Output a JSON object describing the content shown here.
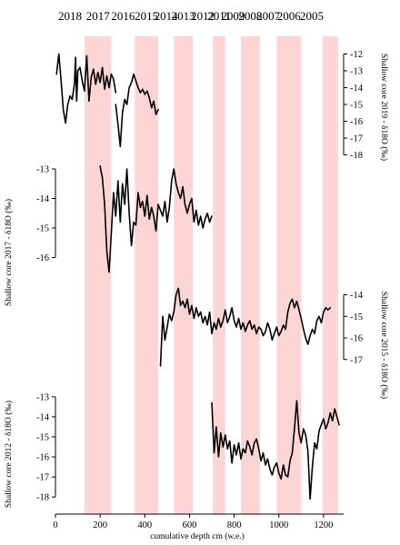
{
  "chart_data": {
    "type": "line",
    "xlabel": "cumulative depth cm (w.e.)",
    "xlim": [
      0,
      1290
    ],
    "x_ticks": [
      0,
      200,
      400,
      600,
      800,
      1000,
      1200
    ],
    "year_bands": [
      {
        "label": "2018",
        "start": 0,
        "end": 130,
        "shaded": false
      },
      {
        "label": "2017",
        "start": 130,
        "end": 250,
        "shaded": true
      },
      {
        "label": "2016",
        "start": 250,
        "end": 355,
        "shaded": false
      },
      {
        "label": "2015",
        "start": 355,
        "end": 460,
        "shaded": true
      },
      {
        "label": "2014",
        "start": 460,
        "end": 530,
        "shaded": false
      },
      {
        "label": "2013",
        "start": 530,
        "end": 615,
        "shaded": true
      },
      {
        "label": "2012",
        "start": 615,
        "end": 705,
        "shaded": false
      },
      {
        "label": "2011",
        "start": 705,
        "end": 760,
        "shaded": true
      },
      {
        "label": "2009",
        "start": 760,
        "end": 830,
        "shaded": false
      },
      {
        "label": "2008",
        "start": 830,
        "end": 915,
        "shaded": true
      },
      {
        "label": "2007",
        "start": 915,
        "end": 990,
        "shaded": false
      },
      {
        "label": "2006",
        "start": 990,
        "end": 1100,
        "shaded": true
      },
      {
        "label": "2005",
        "start": 1100,
        "end": 1195,
        "shaded": false
      },
      {
        "label": "",
        "start": 1195,
        "end": 1265,
        "shaded": true
      }
    ],
    "series": [
      {
        "name": "Shallow core 2019 - δ18O (‰)",
        "axis_side": "right",
        "ylim": [
          -18.4,
          -11.6
        ],
        "ticks": [
          -12,
          -13,
          -14,
          -15,
          -16,
          -17,
          -18
        ],
        "x": [
          5,
          15,
          25,
          35,
          45,
          55,
          65,
          75,
          85,
          90,
          95,
          100,
          110,
          120,
          130,
          140,
          150,
          160,
          170,
          180,
          190,
          200,
          210,
          220,
          230,
          240,
          250,
          260,
          270
        ],
        "y": [
          -13.2,
          -12.0,
          -13.5,
          -15.3,
          -16.1,
          -15.0,
          -14.5,
          -14.7,
          -13.8,
          -12.2,
          -14.8,
          -13.0,
          -12.8,
          -13.6,
          -14.2,
          -12.1,
          -14.8,
          -13.4,
          -12.9,
          -13.8,
          -13.1,
          -13.7,
          -12.8,
          -14.1,
          -13.3,
          -14.0,
          -13.2,
          -13.5,
          -14.3
        ]
      },
      {
        "name": "",
        "axis_side": "right",
        "ylim": [
          -18.4,
          -11.6
        ],
        "ticks": [],
        "x": [
          270,
          280,
          290,
          300,
          310,
          320,
          330,
          340,
          350,
          360,
          370,
          380,
          390,
          400,
          410,
          420,
          430,
          440,
          450,
          460
        ],
        "y": [
          -15.0,
          -16.2,
          -17.5,
          -15.5,
          -14.7,
          -15.0,
          -14.0,
          -13.7,
          -13.2,
          -13.6,
          -14.0,
          -14.3,
          -14.1,
          -14.4,
          -14.2,
          -14.6,
          -15.2,
          -14.8,
          -15.6,
          -15.3
        ]
      },
      {
        "name": "Shallow core 2017 - δ18O (‰)",
        "axis_side": "left",
        "ylim": [
          -16.6,
          -12.6
        ],
        "ticks": [
          -13,
          -14,
          -15,
          -16
        ],
        "x": [
          200,
          210,
          220,
          230,
          240,
          250,
          260,
          270,
          280,
          290,
          300,
          310,
          320,
          330,
          340,
          350,
          360,
          370,
          380,
          390,
          400,
          410,
          420,
          430,
          440,
          450,
          460,
          470,
          480,
          490,
          500,
          510,
          520,
          530,
          540,
          550,
          560,
          570,
          580,
          590,
          600,
          610,
          620,
          630,
          640,
          650,
          660,
          670,
          680,
          690,
          700
        ],
        "y": [
          -12.9,
          -13.3,
          -14.2,
          -15.8,
          -16.5,
          -15.2,
          -13.8,
          -14.6,
          -13.4,
          -14.8,
          -13.5,
          -14.2,
          -13.0,
          -14.5,
          -15.6,
          -14.8,
          -14.9,
          -13.8,
          -14.3,
          -14.1,
          -14.6,
          -13.9,
          -14.7,
          -14.3,
          -14.6,
          -15.1,
          -14.2,
          -14.4,
          -14.6,
          -14.1,
          -14.8,
          -14.3,
          -13.4,
          -13.0,
          -13.5,
          -13.8,
          -14.0,
          -13.6,
          -14.2,
          -14.5,
          -14.2,
          -14.0,
          -14.8,
          -14.4,
          -14.9,
          -14.6,
          -15.0,
          -14.7,
          -14.5,
          -14.8,
          -14.6
        ]
      },
      {
        "name": "Shallow core 2015 - δ18O (‰)",
        "axis_side": "right",
        "ylim": [
          -17.6,
          -13.6
        ],
        "ticks": [
          -14,
          -15,
          -16,
          -17
        ],
        "x": [
          470,
          480,
          490,
          500,
          510,
          520,
          530,
          540,
          550,
          560,
          570,
          580,
          590,
          600,
          610,
          620,
          630,
          640,
          650,
          660,
          670,
          680,
          690,
          700,
          710,
          720,
          730,
          740,
          750,
          760,
          770,
          780,
          790,
          800,
          810,
          820,
          830,
          840,
          850,
          860,
          870,
          880,
          890,
          900,
          910,
          920,
          930,
          940,
          950,
          960,
          970,
          980,
          990,
          1000,
          1010,
          1020,
          1030,
          1040,
          1050,
          1060,
          1070,
          1080,
          1090,
          1100,
          1110,
          1120,
          1130,
          1140,
          1150,
          1160,
          1170,
          1180,
          1190,
          1200,
          1210,
          1220,
          1230
        ],
        "y": [
          -17.3,
          -15.0,
          -16.1,
          -15.5,
          -14.9,
          -15.2,
          -14.8,
          -14.0,
          -13.7,
          -14.5,
          -14.3,
          -14.6,
          -14.2,
          -14.9,
          -14.5,
          -15.1,
          -14.6,
          -15.0,
          -14.8,
          -15.3,
          -15.0,
          -15.4,
          -14.8,
          -15.8,
          -15.3,
          -15.6,
          -15.1,
          -15.5,
          -15.2,
          -14.7,
          -15.3,
          -15.0,
          -14.6,
          -15.2,
          -15.5,
          -15.1,
          -15.6,
          -15.3,
          -15.7,
          -15.4,
          -15.2,
          -15.6,
          -15.4,
          -15.8,
          -15.5,
          -15.6,
          -15.9,
          -15.7,
          -15.3,
          -15.6,
          -16.1,
          -15.8,
          -15.5,
          -15.9,
          -15.7,
          -15.4,
          -15.6,
          -14.8,
          -14.4,
          -14.2,
          -14.6,
          -14.3,
          -14.7,
          -15.1,
          -15.6,
          -16.0,
          -16.3,
          -15.9,
          -15.6,
          -15.8,
          -15.2,
          -15.0,
          -15.3,
          -14.8,
          -14.6,
          -14.7,
          -14.6
        ]
      },
      {
        "name": "Shallow core 2012 - δ18O (‰)",
        "axis_side": "left",
        "ylim": [
          -18.4,
          -12.6
        ],
        "ticks": [
          -13,
          -14,
          -15,
          -16,
          -17,
          -18
        ],
        "x": [
          700,
          710,
          720,
          730,
          740,
          750,
          760,
          770,
          780,
          790,
          800,
          810,
          820,
          830,
          840,
          850,
          860,
          870,
          880,
          890,
          900,
          910,
          920,
          930,
          940,
          950,
          960,
          970,
          980,
          990,
          1000,
          1010,
          1020,
          1030,
          1040,
          1050,
          1060,
          1070,
          1080,
          1090,
          1100,
          1110,
          1120,
          1130,
          1140,
          1150,
          1160,
          1170,
          1180,
          1190,
          1200,
          1210,
          1220,
          1230,
          1240,
          1250,
          1260,
          1270
        ],
        "y": [
          -13.3,
          -15.8,
          -14.5,
          -16.0,
          -14.8,
          -15.5,
          -14.9,
          -15.6,
          -15.2,
          -16.3,
          -15.4,
          -15.9,
          -15.3,
          -16.1,
          -15.6,
          -15.8,
          -15.2,
          -15.5,
          -15.9,
          -15.3,
          -15.1,
          -15.6,
          -16.2,
          -15.8,
          -16.4,
          -16.1,
          -16.6,
          -16.9,
          -16.5,
          -16.3,
          -16.8,
          -17.1,
          -16.4,
          -16.9,
          -17.0,
          -16.2,
          -15.8,
          -14.6,
          -13.2,
          -14.8,
          -15.3,
          -14.6,
          -14.9,
          -15.7,
          -18.1,
          -16.5,
          -15.3,
          -15.6,
          -14.7,
          -14.4,
          -14.1,
          -14.6,
          -14.3,
          -13.8,
          -14.2,
          -13.6,
          -14.0,
          -14.4
        ]
      }
    ]
  }
}
